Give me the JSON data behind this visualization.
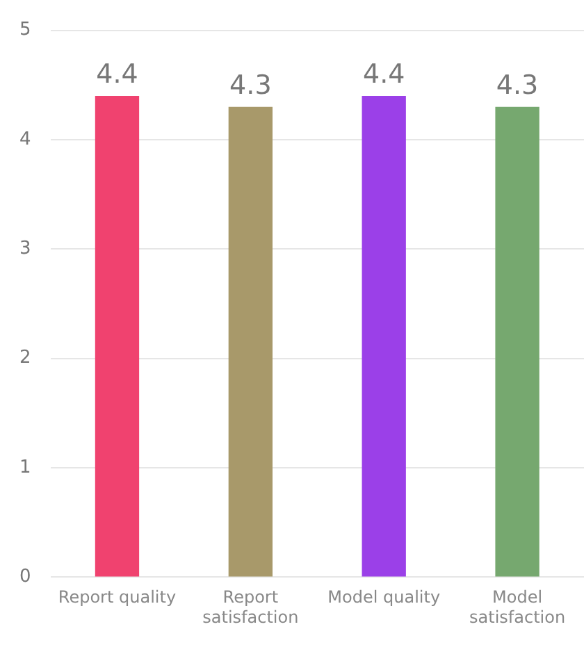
{
  "chart_data": {
    "type": "bar",
    "categories": [
      "Report quality",
      "Report satisfaction",
      "Model quality",
      "Model satisfaction"
    ],
    "values": [
      4.4,
      4.3,
      4.4,
      4.3
    ],
    "colors": [
      "#f0426f",
      "#a8996a",
      "#9b40e8",
      "#76a86f"
    ],
    "ylim": [
      0,
      5
    ],
    "yticks": [
      0,
      1,
      2,
      3,
      4,
      5
    ],
    "grid": "y",
    "data_labels": true,
    "legend": false
  }
}
